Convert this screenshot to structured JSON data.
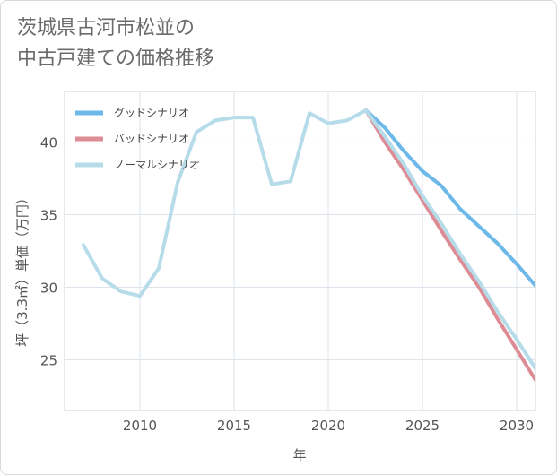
{
  "title_lines": [
    "茨城県古河市松並の",
    "中古戸建ての価格推移"
  ],
  "chart_data": {
    "type": "line",
    "xlabel": "年",
    "ylabel": "坪（3.3㎡）単価（万円）",
    "xlim": [
      2006,
      2031
    ],
    "ylim": [
      21.5,
      43.5
    ],
    "xticks": [
      2010,
      2015,
      2020,
      2025,
      2030
    ],
    "yticks": [
      25,
      30,
      35,
      40
    ],
    "grid": true,
    "legend_position": "top-left",
    "series": [
      {
        "name": "グッドシナリオ",
        "color": "#6cb8e8",
        "x": [
          2022,
          2023,
          2024,
          2025,
          2026,
          2027,
          2028,
          2029,
          2030,
          2031
        ],
        "y": [
          42.2,
          41.0,
          39.4,
          38.0,
          37.0,
          35.4,
          34.2,
          33.0,
          31.6,
          30.1
        ]
      },
      {
        "name": "バッドシナリオ",
        "color": "#dd8c96",
        "x": [
          2022,
          2023,
          2024,
          2025,
          2026,
          2027,
          2028,
          2029,
          2030,
          2031
        ],
        "y": [
          42.2,
          40.0,
          38.1,
          36.0,
          33.9,
          31.9,
          30.0,
          27.8,
          25.7,
          23.6
        ]
      },
      {
        "name": "ノーマルシナリオ",
        "color": "#b6dcea",
        "x": [
          2007,
          2008,
          2009,
          2010,
          2011,
          2012,
          2013,
          2014,
          2015,
          2016,
          2017,
          2018,
          2019,
          2020,
          2021,
          2022,
          2023,
          2024,
          2025,
          2026,
          2027,
          2028,
          2029,
          2030,
          2031
        ],
        "y": [
          32.9,
          30.6,
          29.7,
          29.4,
          31.3,
          37.2,
          40.7,
          41.5,
          41.7,
          41.7,
          37.1,
          37.3,
          42.0,
          41.3,
          41.5,
          42.2,
          40.4,
          38.5,
          36.3,
          34.4,
          32.3,
          30.4,
          28.3,
          26.4,
          24.4
        ]
      }
    ]
  }
}
